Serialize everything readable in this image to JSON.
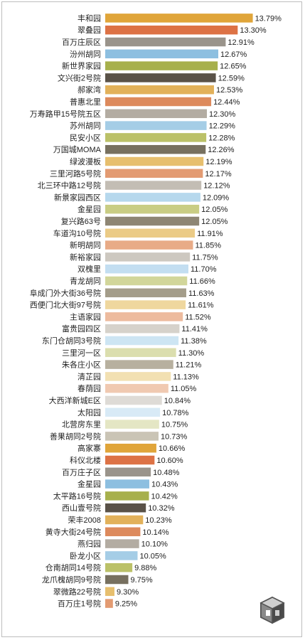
{
  "chart_data": {
    "type": "bar",
    "orientation": "horizontal",
    "categories": [
      "丰和园",
      "翠叠园",
      "百万庄辰区",
      "汾州胡同",
      "新世界家园",
      "文兴街2号院",
      "郝家湾",
      "普惠北里",
      "万寿路甲15号院五区",
      "苏州胡同",
      "民安小区",
      "万国城MOMA",
      "绿波漫板",
      "三里河路5号院",
      "北三环中路12号院",
      "新景家园西区",
      "金星园",
      "复兴路63号",
      "车道沟10号院",
      "新明胡同",
      "新裕家园",
      "双槐里",
      "青龙胡同",
      "阜成门外大街36号院",
      "西便门北大街97号院",
      "主语家园",
      "富贵园四区",
      "东门仓胡同3号院",
      "三里河一区",
      "朱各庄小区",
      "清芷园",
      "春荫园",
      "大西洋新城E区",
      "太阳园",
      "北营房东里",
      "善果胡同2号院",
      "高家寨",
      "科仪北楼",
      "百万庄子区",
      "金星园",
      "太平路16号院",
      "西山壹号院",
      "荣丰2008",
      "黄寺大街24号院",
      "燕归园",
      "卧龙小区",
      "仓南胡同14号院",
      "龙爪槐胡同9号院",
      "翠微路22号院",
      "百万庄1号院"
    ],
    "values": [
      13.79,
      13.3,
      12.91,
      12.67,
      12.65,
      12.59,
      12.53,
      12.44,
      12.3,
      12.29,
      12.28,
      12.26,
      12.19,
      12.17,
      12.12,
      12.09,
      12.05,
      12.05,
      11.91,
      11.85,
      11.75,
      11.7,
      11.66,
      11.63,
      11.61,
      11.52,
      11.41,
      11.38,
      11.3,
      11.21,
      11.13,
      11.05,
      10.84,
      10.78,
      10.75,
      10.73,
      10.66,
      10.6,
      10.48,
      10.43,
      10.42,
      10.32,
      10.23,
      10.14,
      10.1,
      10.05,
      9.88,
      9.75,
      9.3,
      9.25
    ],
    "value_labels": [
      "13.79%",
      "13.30%",
      "12.91%",
      "12.67%",
      "12.65%",
      "12.59%",
      "12.53%",
      "12.44%",
      "12.30%",
      "12.29%",
      "12.28%",
      "12.26%",
      "12.19%",
      "12.17%",
      "12.12%",
      "12.09%",
      "12.05%",
      "12.05%",
      "11.91%",
      "11.85%",
      "11.75%",
      "11.70%",
      "11.66%",
      "11.63%",
      "11.61%",
      "11.52%",
      "11.41%",
      "11.38%",
      "11.30%",
      "11.21%",
      "11.13%",
      "11.05%",
      "10.84%",
      "10.78%",
      "10.75%",
      "10.73%",
      "10.66%",
      "10.60%",
      "10.48%",
      "10.43%",
      "10.42%",
      "10.32%",
      "10.23%",
      "10.14%",
      "10.10%",
      "10.05%",
      "9.88%",
      "9.75%",
      "9.30%",
      "9.25%"
    ],
    "colors": [
      "#e0a53a",
      "#dd7245",
      "#9a948b",
      "#8dbfe0",
      "#a7b04c",
      "#5a5248",
      "#e2b15a",
      "#dd8a5c",
      "#b3aca2",
      "#a5cde6",
      "#bbc168",
      "#77705f",
      "#e7bf6e",
      "#e39b72",
      "#c3bdb4",
      "#b6d8ed",
      "#c9cd84",
      "#8e8674",
      "#ebcb86",
      "#e8ab87",
      "#cdc8c0",
      "#c3def1",
      "#d2d69a",
      "#a49d8a",
      "#efd79e",
      "#edbb9e",
      "#d6d2cb",
      "#cde5f3",
      "#dbdeae",
      "#b7b09f",
      "#f2e0b2",
      "#f0c9b1",
      "#dedbd6",
      "#d8eaf6",
      "#e4e6c4",
      "#cac4b5",
      "#e0a53a",
      "#dd7245",
      "#9a948b",
      "#8dbfe0",
      "#a7b04c",
      "#5a5248",
      "#e2b15a",
      "#dd8a5c",
      "#b3aca2",
      "#a5cde6",
      "#bbc168",
      "#77705f",
      "#e7bf6e",
      "#e39b72"
    ],
    "xlim": [
      9.0,
      13.8
    ]
  },
  "logo": {
    "name": "cube-logo-icon"
  }
}
